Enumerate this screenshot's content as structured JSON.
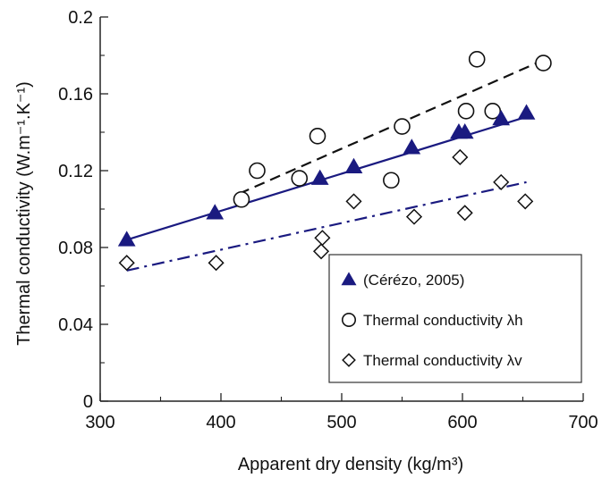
{
  "chart_data": {
    "type": "scatter",
    "title": "",
    "xlabel": "Apparent dry density (kg/m³)",
    "ylabel": "Thermal conductivity (W.m⁻¹.K⁻¹)",
    "xlim": [
      300,
      700
    ],
    "ylim": [
      0,
      0.2
    ],
    "x_ticks": [
      "300",
      "400",
      "500",
      "600",
      "700"
    ],
    "y_ticks": [
      "0",
      "0.04",
      "0.08",
      "0.12",
      "0.16",
      "0.2"
    ],
    "grid": false,
    "legend_position": "bottom-right",
    "series": [
      {
        "name": "(Cérézo, 2005)",
        "marker": "filled-triangle",
        "color": "#1a1a80",
        "points": [
          {
            "x": 322,
            "y": 0.084
          },
          {
            "x": 395,
            "y": 0.098
          },
          {
            "x": 482,
            "y": 0.116
          },
          {
            "x": 510,
            "y": 0.122
          },
          {
            "x": 558,
            "y": 0.132
          },
          {
            "x": 597,
            "y": 0.14
          },
          {
            "x": 602,
            "y": 0.14
          },
          {
            "x": 632,
            "y": 0.147
          },
          {
            "x": 653,
            "y": 0.15
          }
        ],
        "trend": {
          "style": "solid",
          "color": "#1a1a80",
          "x": [
            322,
            653
          ],
          "y": [
            0.084,
            0.148
          ]
        }
      },
      {
        "name": "Thermal conductivity λh",
        "marker": "open-circle",
        "color": "#111111",
        "points": [
          {
            "x": 417,
            "y": 0.105
          },
          {
            "x": 430,
            "y": 0.12
          },
          {
            "x": 465,
            "y": 0.116
          },
          {
            "x": 480,
            "y": 0.138
          },
          {
            "x": 541,
            "y": 0.115
          },
          {
            "x": 550,
            "y": 0.143
          },
          {
            "x": 603,
            "y": 0.151
          },
          {
            "x": 612,
            "y": 0.178
          },
          {
            "x": 625,
            "y": 0.151
          },
          {
            "x": 667,
            "y": 0.176
          }
        ],
        "trend": {
          "style": "dashed",
          "color": "#111111",
          "x": [
            415,
            665
          ],
          "y": [
            0.108,
            0.177
          ]
        }
      },
      {
        "name": "Thermal conductivity λv",
        "marker": "open-diamond",
        "color": "#111111",
        "points": [
          {
            "x": 322,
            "y": 0.072
          },
          {
            "x": 396,
            "y": 0.072
          },
          {
            "x": 483,
            "y": 0.078
          },
          {
            "x": 484,
            "y": 0.085
          },
          {
            "x": 510,
            "y": 0.104
          },
          {
            "x": 560,
            "y": 0.096
          },
          {
            "x": 598,
            "y": 0.127
          },
          {
            "x": 602,
            "y": 0.098
          },
          {
            "x": 632,
            "y": 0.114
          },
          {
            "x": 652,
            "y": 0.104
          }
        ],
        "trend": {
          "style": "dashdot",
          "color": "#1a1a80",
          "x": [
            322,
            653
          ],
          "y": [
            0.068,
            0.114
          ]
        }
      }
    ]
  }
}
